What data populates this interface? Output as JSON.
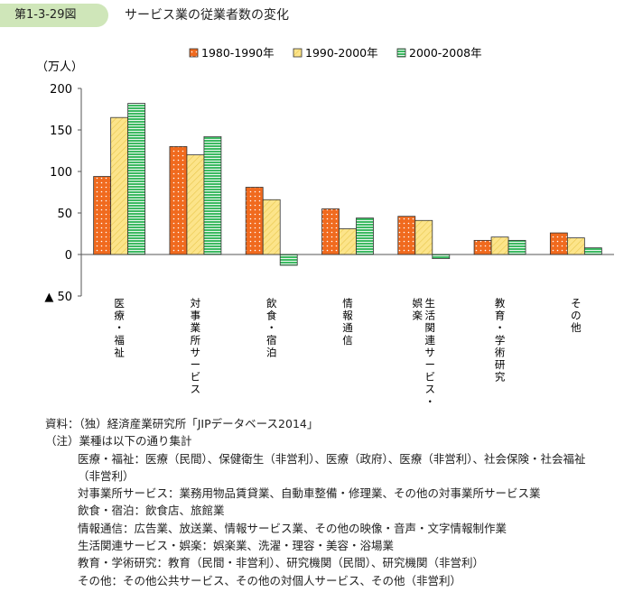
{
  "figure": {
    "number": "第1-3-29図",
    "title": "サービス業の従業者数の変化"
  },
  "chart_data": {
    "type": "bar",
    "ylabel": "（万人）",
    "ylim": [
      -50,
      200
    ],
    "yticks": [
      200,
      150,
      100,
      50,
      0,
      -50
    ],
    "ytick_labels": [
      "200",
      "150",
      "100",
      "50",
      "0",
      "▲ 50"
    ],
    "legend_position": "top",
    "categories": [
      "医療・福祉",
      "対事業所サービス",
      "飲食・宿泊",
      "情報通信",
      "生活関連サービス・娯楽",
      "教育・学術研究",
      "その他"
    ],
    "category_label_lines": [
      [
        "医療・福祉"
      ],
      [
        "対事業所サービス"
      ],
      [
        "飲食・宿泊"
      ],
      [
        "情報通信"
      ],
      [
        "生活関連サービス・",
        "娯楽"
      ],
      [
        "教育・学術研究"
      ],
      [
        "その他"
      ]
    ],
    "series": [
      {
        "name": "1980-1990年",
        "color": "#f06a1e",
        "pattern": "dots",
        "values": [
          94,
          130,
          81,
          55,
          46,
          17,
          26
        ]
      },
      {
        "name": "1990-2000年",
        "color": "#fce48a",
        "pattern": "diagonal",
        "values": [
          165,
          120,
          66,
          31,
          41,
          21,
          20
        ]
      },
      {
        "name": "2000-2008年",
        "color": "#3dba62",
        "pattern": "horizontal",
        "values": [
          182,
          142,
          -13,
          44,
          -5,
          17,
          8
        ]
      }
    ]
  },
  "notes": {
    "source": "資料：（独）経済産業研究所「JIPデータベース2014」",
    "note_head": "（注）業種は以下の通り集計",
    "lines": [
      "医療・福祉：医療（民間）、保健衛生（非営利）、医療（政府）、医療（非営利）、社会保険・社会福祉",
      "（非営利）",
      "対事業所サービス：業務用物品賃貸業、自動車整備・修理業、その他の対事業所サービス業",
      "飲食・宿泊：飲食店、旅館業",
      "情報通信：広告業、放送業、情報サービス業、その他の映像・音声・文字情報制作業",
      "生活関連サービス・娯楽：娯楽業、洗濯・理容・美容・浴場業",
      "教育・学術研究：教育（民間・非営利）、研究機関（民間）、研究機関（非営利）",
      "その他：その他公共サービス、その他の対個人サービス、その他（非営利）"
    ]
  }
}
